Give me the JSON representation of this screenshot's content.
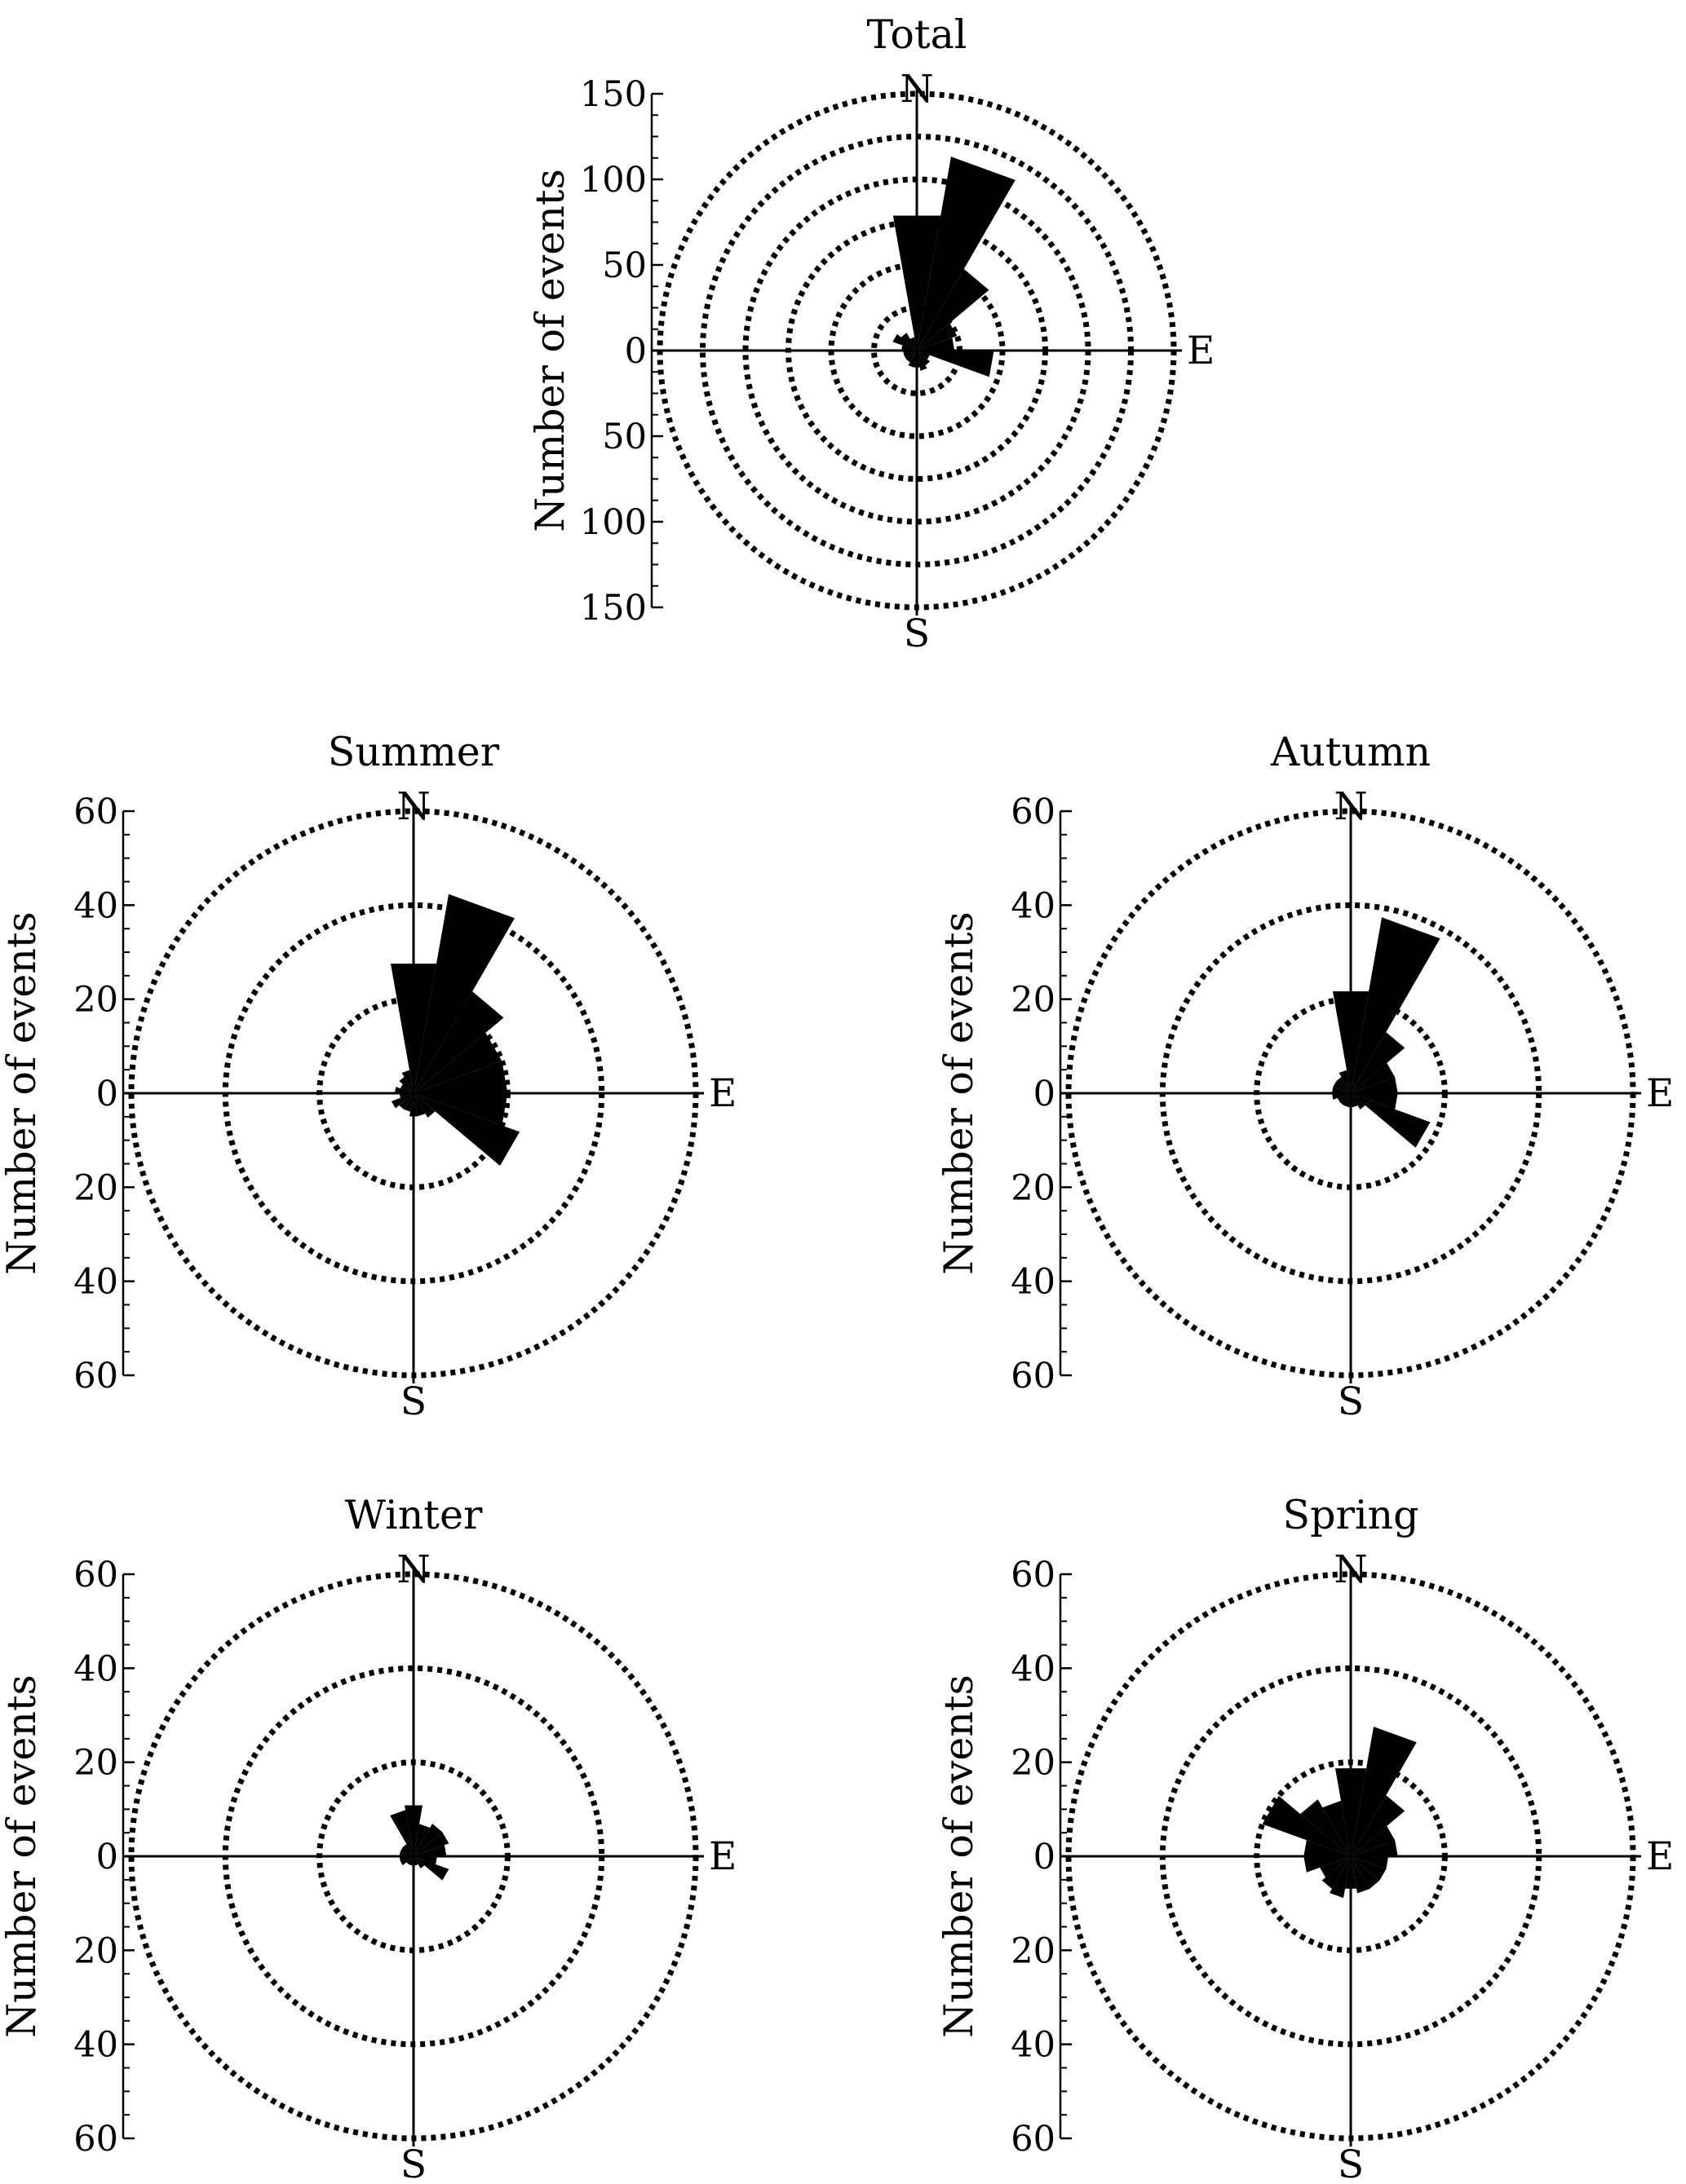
{
  "figure": {
    "background": "#ffffff",
    "ink": "#000000"
  },
  "chart_data": [
    {
      "type": "polar-bar",
      "title": "Total",
      "ylabel": "Number of events",
      "rmax": 150,
      "ticks": [
        150,
        100,
        50,
        0,
        50,
        100,
        150
      ],
      "rings": [
        25,
        50,
        75,
        100,
        125,
        150
      ],
      "grid": "dotted",
      "cardinals": {
        "north": "N",
        "east": "E",
        "south": "S"
      },
      "sector_width_deg": 20,
      "directions_deg": [
        0,
        20,
        40,
        60,
        80,
        100,
        120,
        140,
        160,
        180,
        200,
        220,
        240,
        260,
        280,
        300,
        320,
        340
      ],
      "values": [
        80,
        115,
        55,
        25,
        22,
        45,
        8,
        10,
        12,
        10,
        10,
        8,
        8,
        8,
        9,
        15,
        12,
        8
      ]
    },
    {
      "type": "polar-bar",
      "title": "Summer",
      "ylabel": "Number of events",
      "rmax": 60,
      "ticks": [
        60,
        40,
        20,
        0,
        20,
        40,
        60
      ],
      "rings": [
        20,
        40,
        60
      ],
      "grid": "dotted",
      "cardinals": {
        "north": "N",
        "east": "E",
        "south": "S"
      },
      "sector_width_deg": 20,
      "directions_deg": [
        0,
        20,
        40,
        60,
        80,
        100,
        120,
        140,
        160,
        180,
        200,
        220,
        240,
        260,
        280,
        300,
        320,
        340
      ],
      "values": [
        28,
        43,
        25,
        20,
        20,
        20,
        24,
        6,
        5,
        5,
        4,
        4,
        5,
        3,
        4,
        3,
        4,
        5
      ]
    },
    {
      "type": "polar-bar",
      "title": "Autumn",
      "ylabel": "Number of events",
      "rmax": 60,
      "ticks": [
        60,
        40,
        20,
        0,
        20,
        40,
        60
      ],
      "rings": [
        20,
        40,
        60
      ],
      "grid": "dotted",
      "cardinals": {
        "north": "N",
        "east": "E",
        "south": "S"
      },
      "sector_width_deg": 20,
      "directions_deg": [
        0,
        20,
        40,
        60,
        80,
        100,
        120,
        140,
        160,
        180,
        200,
        220,
        240,
        260,
        280,
        300,
        320,
        340
      ],
      "values": [
        22,
        38,
        15,
        10,
        10,
        10,
        18,
        4,
        3,
        3,
        3,
        3,
        3,
        4,
        4,
        4,
        4,
        5
      ]
    },
    {
      "type": "polar-bar",
      "title": "Winter",
      "ylabel": "Number of events",
      "rmax": 60,
      "ticks": [
        60,
        40,
        20,
        0,
        20,
        40,
        60
      ],
      "rings": [
        20,
        40,
        60
      ],
      "grid": "dotted",
      "cardinals": {
        "north": "N",
        "east": "E",
        "south": "S"
      },
      "sector_width_deg": 20,
      "directions_deg": [
        0,
        20,
        40,
        60,
        80,
        100,
        120,
        140,
        160,
        180,
        200,
        220,
        240,
        260,
        280,
        300,
        320,
        340
      ],
      "values": [
        11,
        7,
        8,
        8,
        7,
        5,
        8,
        3,
        2,
        2,
        2,
        2,
        3,
        3,
        3,
        3,
        3,
        10
      ]
    },
    {
      "type": "polar-bar",
      "title": "Spring",
      "ylabel": "Number of events",
      "rmax": 60,
      "ticks": [
        60,
        40,
        20,
        0,
        20,
        40,
        60
      ],
      "rings": [
        20,
        40,
        60
      ],
      "grid": "dotted",
      "cardinals": {
        "north": "N",
        "east": "E",
        "south": "S"
      },
      "sector_width_deg": 20,
      "directions_deg": [
        0,
        20,
        40,
        60,
        80,
        100,
        120,
        140,
        160,
        180,
        200,
        220,
        240,
        260,
        280,
        300,
        320,
        340
      ],
      "values": [
        19,
        28,
        15,
        10,
        10,
        8,
        8,
        8,
        8,
        7,
        9,
        8,
        7,
        10,
        10,
        20,
        14,
        12
      ]
    }
  ]
}
